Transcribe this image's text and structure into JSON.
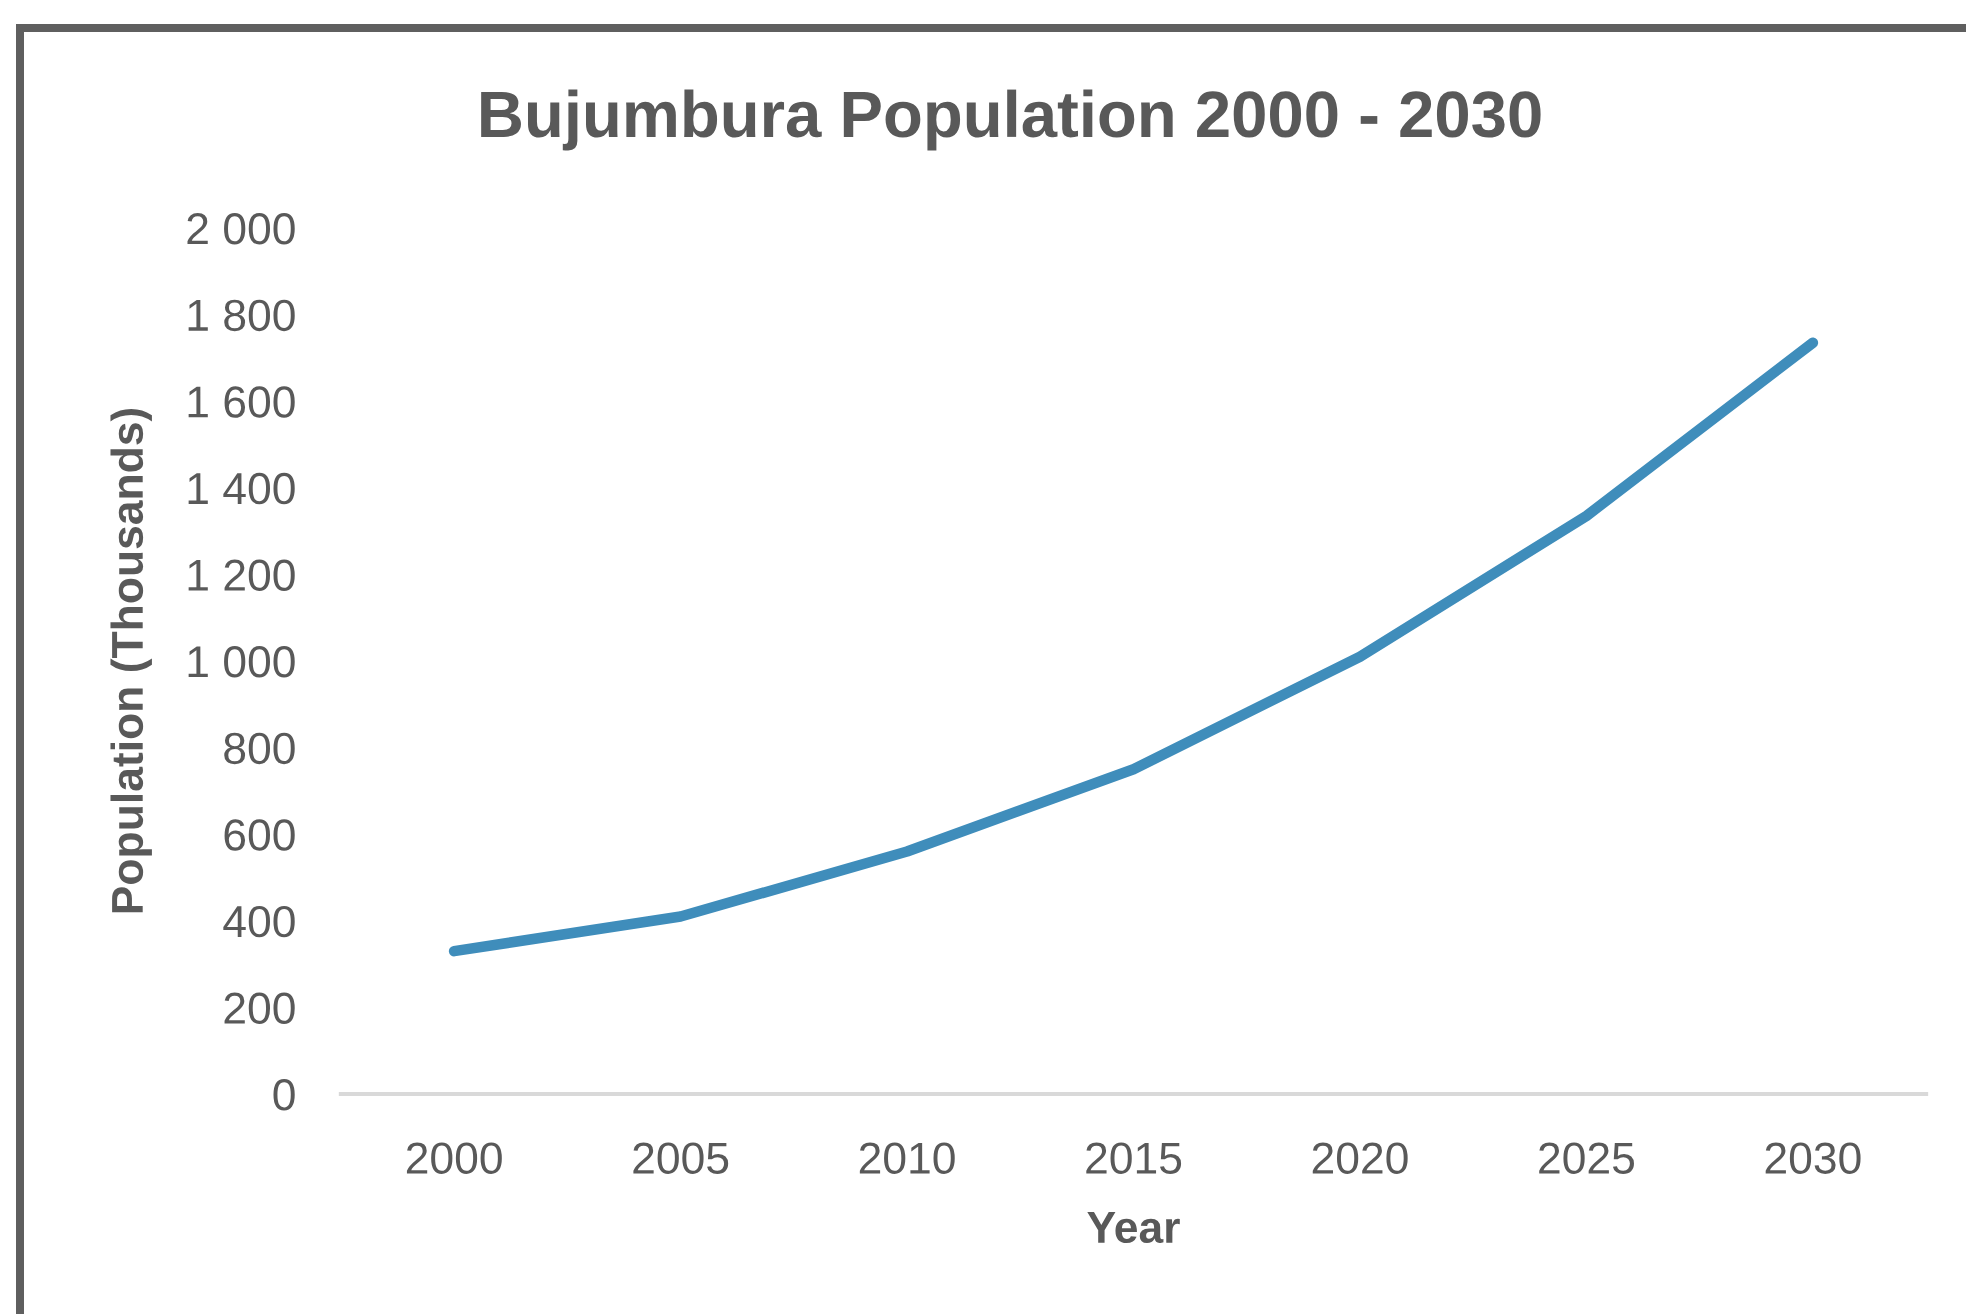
{
  "chart_data": {
    "type": "line",
    "title": "Bujumbura Population 2000 - 2030",
    "xlabel": "Year",
    "ylabel": "Population (Thousands)",
    "categories": [
      "2000",
      "2005",
      "2010",
      "2015",
      "2020",
      "2025",
      "2030"
    ],
    "series": [
      {
        "color": "#3f8dbb",
        "values": [
          330,
          410,
          560,
          750,
          1010,
          1335,
          1735
        ]
      }
    ],
    "ylim": [
      0,
      2000
    ],
    "yticks": [
      0,
      200,
      400,
      600,
      800,
      {
        "value": 1000,
        "label": "1 000"
      },
      {
        "value": 1200,
        "label": "1 200"
      },
      {
        "value": 1400,
        "label": "1 400"
      },
      {
        "value": 1600,
        "label": "1 600"
      },
      {
        "value": 1800,
        "label": "1 800"
      },
      {
        "value": 2000,
        "label": "2 000"
      }
    ],
    "grid": false,
    "marker": "none",
    "line_style": "solid"
  }
}
